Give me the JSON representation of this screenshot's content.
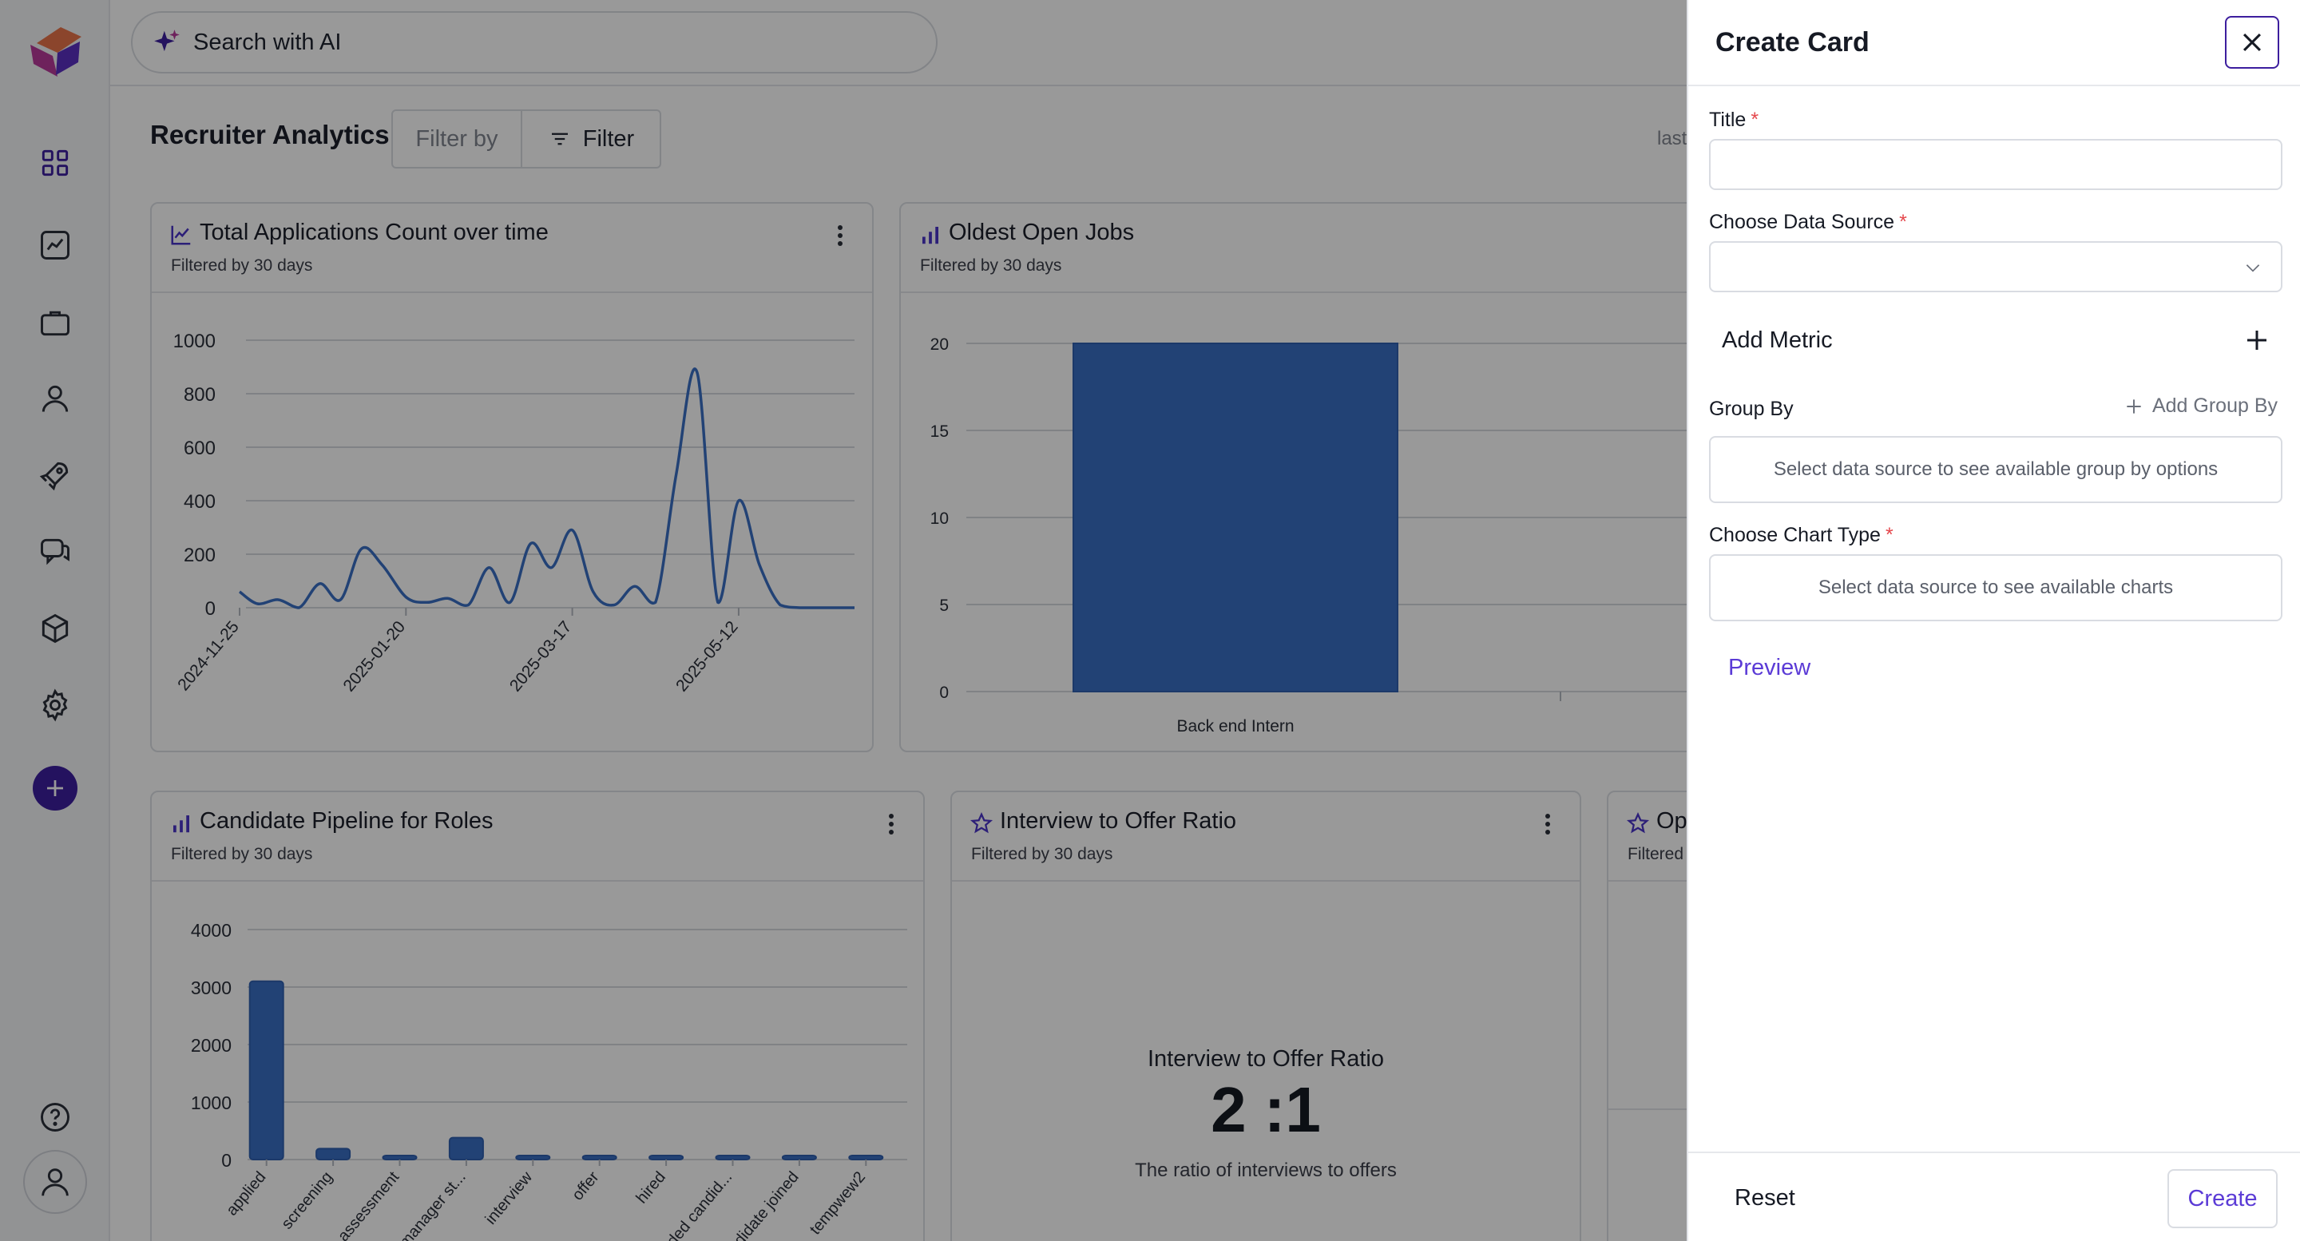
{
  "search": {
    "placeholder": "Search with AI"
  },
  "header": {
    "title": "Recruiter Analytics",
    "filter_by": "Filter by",
    "filter_button": "Filter",
    "last_text": "last"
  },
  "sidebar": {
    "items": [
      {
        "name": "dashboard",
        "icon": "grid-icon"
      },
      {
        "name": "analytics",
        "icon": "line-chart-icon"
      },
      {
        "name": "jobs",
        "icon": "briefcase-icon"
      },
      {
        "name": "candidates",
        "icon": "user-icon"
      },
      {
        "name": "launch",
        "icon": "rocket-icon"
      },
      {
        "name": "messages",
        "icon": "chat-icon"
      },
      {
        "name": "integrations",
        "icon": "cube-icon"
      },
      {
        "name": "settings",
        "icon": "gear-icon"
      }
    ]
  },
  "cards": {
    "applications": {
      "title": "Total Applications Count over time",
      "subtitle": "Filtered by 30 days",
      "chart_data": {
        "type": "line",
        "title": "Total Applications Count over time",
        "ylim": [
          0,
          1000
        ],
        "yticks": [
          "0",
          "200",
          "400",
          "600",
          "800",
          "1000"
        ],
        "xtick_labels": [
          "2024-11-25",
          "2025-01-20",
          "2025-03-17",
          "2025-05-12"
        ],
        "x_range": [
          "2024-11-25",
          "2025-06-20"
        ],
        "x": [
          "2024-11-25",
          "2024-12-01",
          "2024-12-08",
          "2024-12-15",
          "2024-12-22",
          "2024-12-29",
          "2025-01-05",
          "2025-01-12",
          "2025-01-20",
          "2025-01-27",
          "2025-02-03",
          "2025-02-10",
          "2025-02-17",
          "2025-02-24",
          "2025-03-03",
          "2025-03-10",
          "2025-03-17",
          "2025-03-24",
          "2025-03-31",
          "2025-04-07",
          "2025-04-14",
          "2025-04-21",
          "2025-04-28",
          "2025-05-05",
          "2025-05-12",
          "2025-05-19",
          "2025-05-26",
          "2025-06-02",
          "2025-06-09",
          "2025-06-16",
          "2025-06-20"
        ],
        "values": [
          60,
          15,
          30,
          0,
          90,
          30,
          220,
          160,
          40,
          20,
          35,
          10,
          150,
          20,
          240,
          150,
          290,
          60,
          10,
          80,
          20,
          500,
          880,
          20,
          400,
          160,
          10,
          0,
          0,
          0,
          0
        ]
      }
    },
    "oldest_jobs": {
      "title": "Oldest Open Jobs",
      "subtitle": "Filtered by 30 days",
      "chart_data": {
        "type": "bar",
        "title": "Oldest Open Jobs",
        "categories": [
          "Back end Intern"
        ],
        "values": [
          20
        ],
        "ylim": [
          0,
          20
        ],
        "yticks": [
          "0",
          "5",
          "10",
          "15",
          "20"
        ]
      }
    },
    "pipeline": {
      "title": "Candidate Pipeline for Roles",
      "subtitle": "Filtered by 30 days",
      "chart_data": {
        "type": "bar",
        "title": "Candidate Pipeline for Roles",
        "categories": [
          "applied",
          "screening",
          "assessment",
          "manager st...",
          "interview",
          "offer",
          "hired",
          "rded candid...",
          "ndidate joined",
          "tempwew2"
        ],
        "values": [
          3100,
          190,
          40,
          380,
          30,
          30,
          30,
          30,
          30,
          30
        ],
        "ylim": [
          0,
          4000
        ],
        "yticks": [
          "0",
          "1000",
          "2000",
          "3000",
          "4000"
        ]
      }
    },
    "ratio": {
      "title": "Interview to Offer Ratio",
      "subtitle": "Filtered by 30 days",
      "kpi_label": "Interview to Offer Ratio",
      "kpi_value": "2 :1",
      "kpi_desc": "The ratio of interviews to offers"
    },
    "partial": {
      "title": "Op",
      "subtitle": "Filtered b"
    }
  },
  "drawer": {
    "title": "Create Card",
    "title_label": "Title",
    "data_source_label": "Choose Data Source",
    "add_metric": "Add Metric",
    "group_by_label": "Group By",
    "add_group_by": "Add Group By",
    "group_by_hint": "Select data source to see available group by options",
    "chart_type_label": "Choose Chart Type",
    "chart_type_hint": "Select data source to see available charts",
    "preview": "Preview",
    "reset": "Reset",
    "create": "Create",
    "required_mark": "*"
  },
  "colors": {
    "accent": "#3c1e9e",
    "bar": "#3a6fc4",
    "line": "#3a6fc4",
    "link": "#5b3bd6"
  }
}
